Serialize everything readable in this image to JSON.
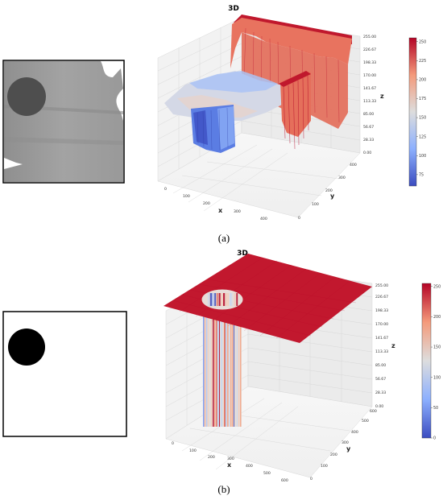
{
  "figure": {
    "panels": [
      {
        "caption": "(a)",
        "image_desc": "grayscale",
        "colormap": "coolwarm",
        "plot_title": "3D",
        "xlabel": "x",
        "ylabel": "y",
        "zlabel": "z",
        "x_ticks": [
          "0",
          "100",
          "200",
          "300",
          "400"
        ],
        "y_ticks": [
          "0",
          "100",
          "200",
          "300",
          "400"
        ],
        "z_ticks": [
          "0.00",
          "28.33",
          "56.67",
          "85.00",
          "113.33",
          "141.67",
          "170.00",
          "198.33",
          "226.67",
          "255.00"
        ],
        "colorbar_ticks": [
          "75",
          "100",
          "125",
          "150",
          "175",
          "200",
          "225",
          "250"
        ],
        "colorbar_range": [
          60,
          255
        ]
      },
      {
        "caption": "(b)",
        "image_desc": "binary",
        "colormap": "coolwarm",
        "plot_title": "3D",
        "xlabel": "x",
        "ylabel": "y",
        "zlabel": "z",
        "x_ticks": [
          "0",
          "100",
          "200",
          "300",
          "400",
          "500",
          "600"
        ],
        "y_ticks": [
          "0",
          "100",
          "200",
          "300",
          "400",
          "500",
          "600"
        ],
        "z_ticks": [
          "0.00",
          "28.33",
          "56.67",
          "85.00",
          "113.33",
          "141.67",
          "170.00",
          "198.33",
          "226.67",
          "255.00"
        ],
        "colorbar_ticks": [
          "0",
          "50",
          "100",
          "150",
          "200",
          "250"
        ],
        "colorbar_range": [
          0,
          255
        ]
      }
    ]
  },
  "chart_data": [
    {
      "type": "surface3d",
      "title": "3D",
      "xlabel": "x",
      "ylabel": "y",
      "zlabel": "z",
      "xlim": [
        0,
        400
      ],
      "ylim": [
        0,
        400
      ],
      "zlim": [
        0,
        255
      ],
      "grid": true,
      "legend": "colorbar-right",
      "colorbar_range": [
        60,
        255
      ]
    },
    {
      "type": "surface3d",
      "title": "3D",
      "xlabel": "x",
      "ylabel": "y",
      "zlabel": "z",
      "xlim": [
        0,
        600
      ],
      "ylim": [
        0,
        600
      ],
      "zlim": [
        0,
        255
      ],
      "grid": true,
      "legend": "colorbar-right",
      "colorbar_range": [
        0,
        255
      ]
    }
  ]
}
